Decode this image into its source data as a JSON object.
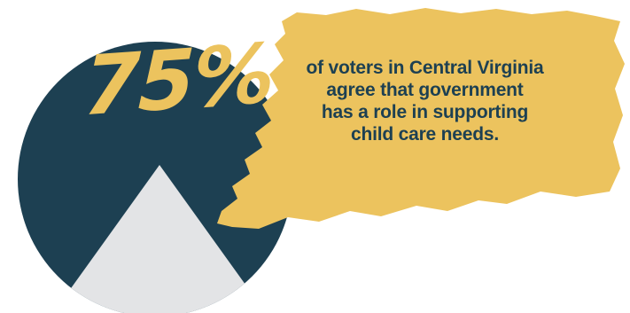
{
  "colors": {
    "circle": "#1d4052",
    "accent": "#ecc35e",
    "triangle": "#e3e4e6",
    "text": "#1d4052"
  },
  "stat": {
    "value": "75%"
  },
  "statement": {
    "lines": [
      "of voters in Central Virginia",
      "agree that government",
      "has a role in supporting",
      "child care needs."
    ]
  }
}
